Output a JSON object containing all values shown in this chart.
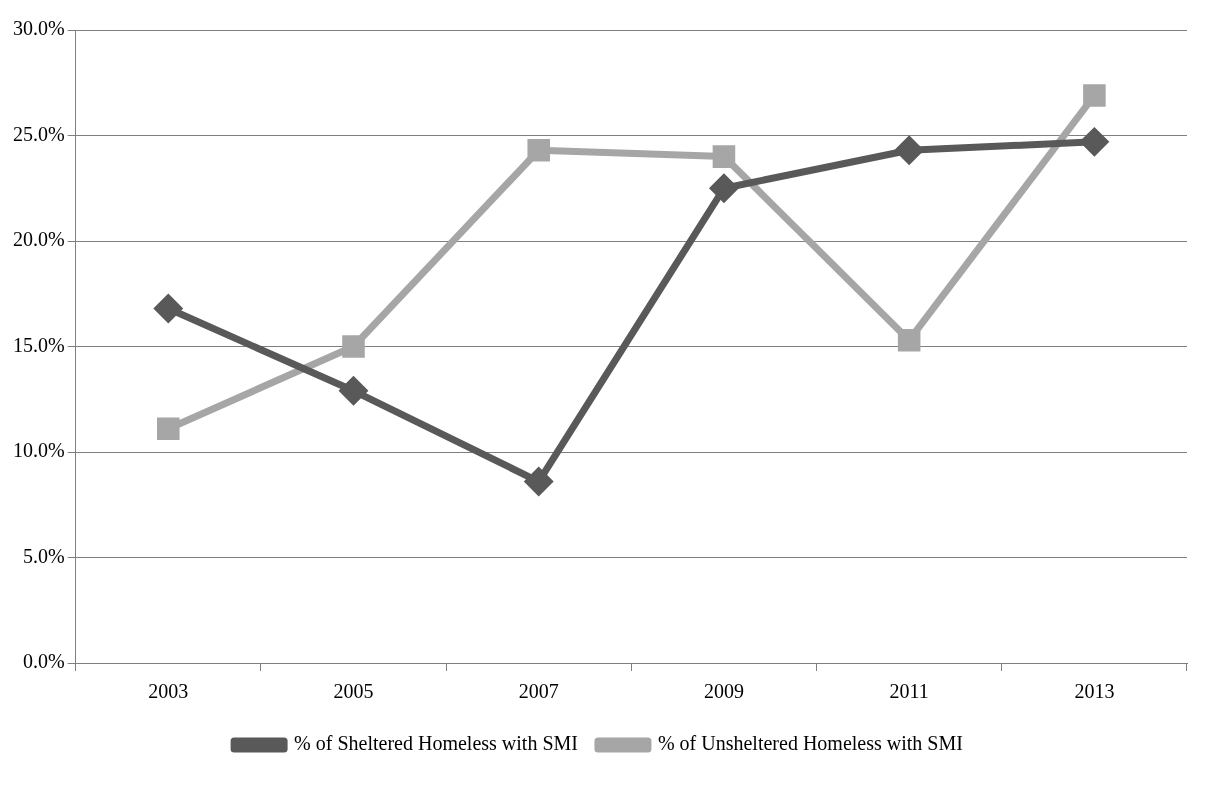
{
  "chart_data": {
    "type": "line",
    "categories": [
      "2003",
      "2005",
      "2007",
      "2009",
      "2011",
      "2013"
    ],
    "series": [
      {
        "name": "% of Sheltered Homeless with SMI",
        "color": "#595959",
        "marker": "diamond",
        "values": [
          16.8,
          12.9,
          8.6,
          22.5,
          24.3,
          24.7
        ]
      },
      {
        "name": "% of Unsheltered Homeless with SMI",
        "color": "#a6a6a6",
        "marker": "square",
        "values": [
          11.1,
          15.0,
          24.3,
          24.0,
          15.3,
          26.9
        ]
      }
    ],
    "ylim": [
      0,
      30
    ],
    "yticks": [
      {
        "value": 0,
        "label": "0.0%"
      },
      {
        "value": 5,
        "label": "5.0%"
      },
      {
        "value": 10,
        "label": "10.0%"
      },
      {
        "value": 15,
        "label": "15.0%"
      },
      {
        "value": 20,
        "label": "20.0%"
      },
      {
        "value": 25,
        "label": "25.0%"
      },
      {
        "value": 30,
        "label": "30.0%"
      }
    ],
    "grid": "y",
    "legend": "bottom",
    "line_style": "solid"
  }
}
